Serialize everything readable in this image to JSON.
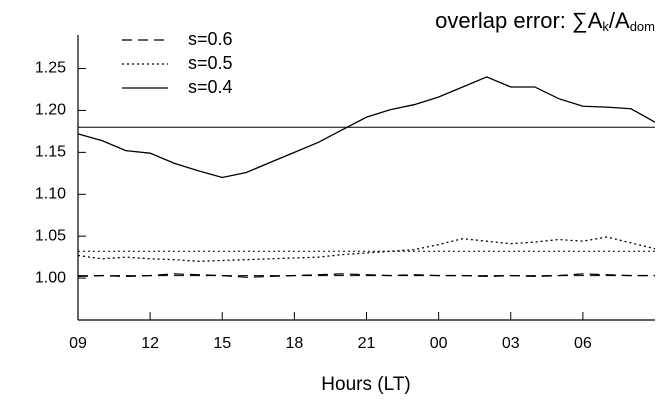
{
  "chart_data": {
    "type": "line",
    "title_parts": [
      "overlap error: ∑A",
      "k",
      "/A",
      "dom"
    ],
    "x_label": "Hours (LT)",
    "x": [
      9,
      10,
      11,
      12,
      13,
      14,
      15,
      16,
      17,
      18,
      19,
      20,
      21,
      22,
      23,
      24,
      25,
      26,
      27,
      28,
      29,
      30,
      31,
      32,
      33
    ],
    "xlim": [
      9,
      33
    ],
    "xticks": [
      {
        "value": 9,
        "label": "09"
      },
      12,
      15,
      18,
      21,
      {
        "value": 24,
        "label": "00"
      },
      {
        "value": 27,
        "label": "03"
      },
      {
        "value": 30,
        "label": "06"
      }
    ],
    "ylim": [
      0.95,
      1.29
    ],
    "yticks": [
      {
        "value": 1.0,
        "label": "1.00"
      },
      1.05,
      {
        "value": 1.1,
        "label": "1.10"
      },
      1.15,
      {
        "value": 1.2,
        "label": "1.20"
      },
      1.25
    ],
    "legend": "upper left",
    "series": [
      {
        "name": "s=0.6",
        "color": "#000000",
        "dash": "dashed",
        "mean": 1.003,
        "values": [
          1.002,
          1.003,
          1.002,
          1.003,
          1.005,
          1.004,
          1.003,
          1.001,
          1.002,
          1.003,
          1.004,
          1.005,
          1.004,
          1.003,
          1.004,
          1.003,
          1.003,
          1.002,
          1.003,
          1.002,
          1.003,
          1.005,
          1.004,
          1.003,
          1.003
        ]
      },
      {
        "name": "s=0.5",
        "color": "#000000",
        "dash": "dotted",
        "mean": 1.032,
        "values": [
          1.027,
          1.023,
          1.025,
          1.023,
          1.022,
          1.02,
          1.021,
          1.022,
          1.023,
          1.024,
          1.025,
          1.028,
          1.03,
          1.032,
          1.034,
          1.04,
          1.047,
          1.044,
          1.041,
          1.043,
          1.046,
          1.044,
          1.049,
          1.042,
          1.035
        ]
      },
      {
        "name": "s=0.4",
        "color": "#000000",
        "dash": "solid",
        "mean": 1.18,
        "values": [
          1.172,
          1.164,
          1.152,
          1.149,
          1.137,
          1.128,
          1.12,
          1.126,
          1.138,
          1.15,
          1.162,
          1.177,
          1.192,
          1.201,
          1.207,
          1.216,
          1.228,
          1.24,
          1.228,
          1.228,
          1.214,
          1.205,
          1.204,
          1.202,
          1.186
        ]
      }
    ]
  }
}
